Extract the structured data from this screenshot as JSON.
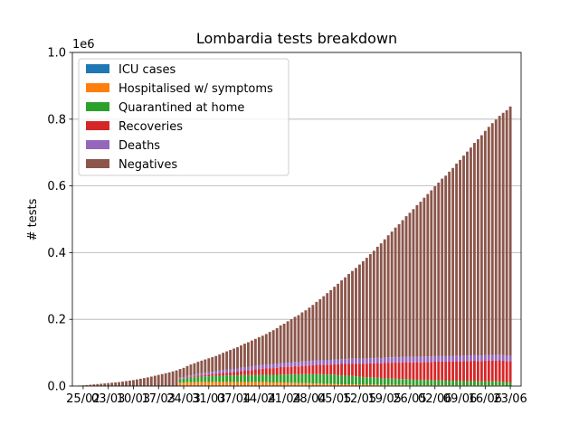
{
  "chart_data": {
    "type": "bar",
    "stacked": true,
    "title": "Lombardia tests breakdown",
    "xlabel": "",
    "ylabel": "# tests",
    "y_offset_label": "1e6",
    "ylim": [
      0,
      1000000
    ],
    "yticks": [
      0,
      200000,
      400000,
      600000,
      800000,
      1000000
    ],
    "ytick_labels": [
      "0.0",
      "0.2",
      "0.4",
      "0.6",
      "0.8",
      "1.0"
    ],
    "grid": "horizontal",
    "legend_position": "upper-left",
    "x_start_date": "2020-02-24",
    "xticks": [
      "25/02",
      "03/03",
      "10/03",
      "17/03",
      "24/03",
      "31/03",
      "07/04",
      "14/04",
      "21/04",
      "28/04",
      "05/05",
      "12/05",
      "19/05",
      "26/05",
      "02/06",
      "09/06",
      "16/06",
      "23/06"
    ],
    "series": [
      {
        "name": "ICU cases",
        "color": "#1f77b4"
      },
      {
        "name": "Hospitalised w/ symptoms",
        "color": "#ff7f0e"
      },
      {
        "name": "Quarantined at home",
        "color": "#2ca02c"
      },
      {
        "name": "Recoveries",
        "color": "#d62728"
      },
      {
        "name": "Deaths",
        "color": "#9467bd"
      },
      {
        "name": "Negatives",
        "color": "#8c564b"
      }
    ],
    "dates": [
      "24/02",
      "25/02",
      "26/02",
      "27/02",
      "28/02",
      "29/02",
      "01/03",
      "02/03",
      "03/03",
      "04/03",
      "05/03",
      "06/03",
      "07/03",
      "08/03",
      "09/03",
      "10/03",
      "11/03",
      "12/03",
      "13/03",
      "14/03",
      "15/03",
      "16/03",
      "17/03",
      "18/03",
      "19/03",
      "20/03",
      "21/03",
      "22/03",
      "23/03",
      "24/03",
      "25/03",
      "26/03",
      "27/03",
      "28/03",
      "29/03",
      "30/03",
      "31/03",
      "01/04",
      "02/04",
      "03/04",
      "04/04",
      "05/04",
      "06/04",
      "07/04",
      "08/04",
      "09/04",
      "10/04",
      "11/04",
      "12/04",
      "13/04",
      "14/04",
      "15/04",
      "16/04",
      "17/04",
      "18/04",
      "19/04",
      "20/04",
      "21/04",
      "22/04",
      "23/04",
      "24/04",
      "25/04",
      "26/04",
      "27/04",
      "28/04",
      "29/04",
      "30/04",
      "01/05",
      "02/05",
      "03/05",
      "04/05",
      "05/05",
      "06/05",
      "07/05",
      "08/05",
      "09/05",
      "10/05",
      "11/05",
      "12/05",
      "13/05",
      "14/05",
      "15/05",
      "16/05",
      "17/05",
      "18/05",
      "19/05",
      "20/05",
      "21/05",
      "22/05",
      "23/05",
      "24/05",
      "25/05",
      "26/05",
      "27/05",
      "28/05",
      "29/05",
      "30/05",
      "31/05",
      "01/06",
      "02/06",
      "03/06",
      "04/06",
      "05/06",
      "06/06",
      "07/06",
      "08/06",
      "09/06",
      "10/06",
      "11/06",
      "12/06",
      "13/06",
      "14/06",
      "15/06",
      "16/06",
      "17/06",
      "18/06",
      "19/06",
      "20/06",
      "21/06",
      "22/06",
      "23/06"
    ],
    "values": {
      "ICU cases": [
        0,
        0,
        0,
        0,
        0,
        0,
        0,
        0,
        0,
        0,
        0,
        0,
        0,
        0,
        0,
        0,
        0,
        0,
        0,
        0,
        0,
        0,
        0,
        0,
        0,
        0,
        0,
        0,
        1200,
        1200,
        1200,
        1200,
        1300,
        1300,
        1300,
        1300,
        1300,
        1300,
        1300,
        1300,
        1300,
        1300,
        1300,
        1200,
        1200,
        1200,
        1100,
        1100,
        1100,
        1000,
        1000,
        1000,
        900,
        900,
        900,
        900,
        900,
        800,
        800,
        800,
        800,
        700,
        700,
        700,
        700,
        600,
        600,
        600,
        500,
        500,
        500,
        500,
        400,
        400,
        400,
        400,
        400,
        300,
        300,
        300,
        300,
        300,
        300,
        300,
        300,
        300,
        200,
        200,
        200,
        200,
        200,
        200,
        200,
        200,
        200,
        200,
        200,
        200,
        200,
        200,
        200,
        200,
        100,
        100,
        100,
        100,
        100,
        100,
        100,
        100,
        100,
        100,
        100,
        100,
        100,
        100,
        100,
        100,
        100,
        100,
        100
      ],
      "Hospitalised w/ symptoms": [
        0,
        0,
        0,
        0,
        0,
        0,
        0,
        0,
        0,
        0,
        0,
        0,
        0,
        0,
        0,
        0,
        0,
        0,
        0,
        0,
        0,
        0,
        0,
        0,
        0,
        0,
        0,
        0,
        9000,
        9000,
        10000,
        10000,
        10000,
        11000,
        11000,
        11000,
        11000,
        11000,
        11000,
        11000,
        11000,
        11000,
        11000,
        11000,
        11000,
        11000,
        11000,
        11000,
        11000,
        11000,
        11000,
        11000,
        11000,
        10000,
        10000,
        10000,
        10000,
        10000,
        9000,
        9000,
        9000,
        8000,
        8000,
        8000,
        8000,
        7000,
        7000,
        7000,
        6000,
        6000,
        6000,
        6000,
        5000,
        5000,
        5000,
        5000,
        5000,
        5000,
        4000,
        4000,
        4000,
        4000,
        4000,
        4000,
        3000,
        3000,
        3000,
        3000,
        3000,
        3000,
        3000,
        3000,
        3000,
        2000,
        2000,
        2000,
        2000,
        2000,
        2000,
        2000,
        2000,
        2000,
        2000,
        2000,
        2000,
        2000,
        2000,
        2000,
        2000,
        2000,
        2000,
        2000,
        2000,
        2000,
        2000,
        2000,
        2000,
        2000,
        2000
      ],
      "Quarantined at home": [
        0,
        0,
        0,
        0,
        0,
        0,
        0,
        0,
        0,
        0,
        0,
        0,
        0,
        0,
        0,
        0,
        0,
        0,
        0,
        0,
        0,
        0,
        0,
        0,
        0,
        0,
        0,
        0,
        11000,
        12000,
        13000,
        14000,
        15000,
        16000,
        16000,
        17000,
        17000,
        18000,
        18000,
        19000,
        19000,
        20000,
        20000,
        20000,
        20000,
        21000,
        21000,
        21000,
        21000,
        22000,
        22000,
        22000,
        22000,
        23000,
        23000,
        23000,
        24000,
        24000,
        25000,
        25000,
        26000,
        26000,
        27000,
        27000,
        27000,
        28000,
        28000,
        28000,
        28000,
        28000,
        28000,
        28000,
        27000,
        27000,
        26000,
        26000,
        25000,
        24000,
        24000,
        23000,
        22000,
        22000,
        21000,
        21000,
        20000,
        20000,
        20000,
        19000,
        19000,
        18000,
        18000,
        18000,
        17000,
        17000,
        17000,
        16000,
        16000,
        16000,
        15000,
        15000,
        15000,
        15000,
        14000,
        14000,
        14000,
        14000,
        13000,
        13000,
        13000,
        13000,
        13000,
        12000,
        12000,
        12000,
        12000,
        12000,
        12000,
        12000,
        11000,
        11000,
        11000
      ],
      "Recoveries": [
        0,
        0,
        0,
        0,
        0,
        0,
        0,
        0,
        0,
        0,
        0,
        0,
        0,
        0,
        0,
        0,
        0,
        0,
        0,
        0,
        0,
        0,
        0,
        0,
        0,
        0,
        0,
        0,
        1000,
        1000,
        2000,
        2000,
        3000,
        3000,
        4000,
        4000,
        5000,
        5000,
        6000,
        7000,
        8000,
        8000,
        9000,
        10000,
        11000,
        12000,
        13000,
        14000,
        15000,
        16000,
        17000,
        18000,
        19000,
        20000,
        20000,
        21000,
        22000,
        22000,
        23000,
        23000,
        24000,
        24000,
        25000,
        25000,
        26000,
        27000,
        28000,
        28000,
        29000,
        30000,
        30000,
        31000,
        33000,
        34000,
        35000,
        36000,
        37000,
        38000,
        39000,
        40000,
        41000,
        42000,
        43000,
        44000,
        45000,
        46000,
        47000,
        48000,
        49000,
        49000,
        50000,
        51000,
        51000,
        52000,
        53000,
        53000,
        54000,
        54000,
        55000,
        56000,
        56000,
        57000,
        57000,
        58000,
        58000,
        59000,
        59000,
        60000,
        60000,
        60000,
        61000,
        61000,
        61000,
        62000,
        62000,
        62000,
        62000,
        63000,
        63000,
        63000,
        64000
      ],
      "Deaths": [
        0,
        0,
        0,
        0,
        0,
        0,
        0,
        0,
        0,
        0,
        0,
        0,
        0,
        0,
        0,
        0,
        0,
        0,
        0,
        0,
        0,
        0,
        0,
        0,
        0,
        0,
        0,
        0,
        3000,
        3500,
        4000,
        4500,
        5000,
        5500,
        6000,
        6500,
        7000,
        7500,
        8000,
        8300,
        8500,
        8800,
        9000,
        9300,
        9500,
        9800,
        10000,
        10200,
        10400,
        10600,
        10800,
        11000,
        11200,
        11400,
        11600,
        11800,
        12000,
        12200,
        12400,
        12600,
        12800,
        13000,
        13200,
        13400,
        13500,
        13600,
        13700,
        13800,
        13900,
        14000,
        14100,
        14200,
        14300,
        14400,
        14500,
        14600,
        14700,
        14800,
        14900,
        15000,
        15100,
        15200,
        15300,
        15400,
        15500,
        15600,
        15700,
        15800,
        15900,
        16000,
        16000,
        16100,
        16100,
        16200,
        16200,
        16300,
        16300,
        16400,
        16400,
        16500,
        16500,
        16500,
        16600,
        16600,
        16600,
        16700,
        16700,
        16700,
        16700,
        16800,
        16800,
        16800,
        16800,
        16800,
        16900,
        16900,
        16900,
        16900,
        16900,
        16900,
        16900
      ],
      "Negatives": [
        1500,
        2000,
        3000,
        4000,
        5000,
        6000,
        7000,
        8000,
        9000,
        10000,
        11000,
        12000,
        13500,
        15000,
        16500,
        18000,
        20000,
        22000,
        24000,
        26000,
        28500,
        31000,
        33500,
        36000,
        38500,
        41000,
        44000,
        47000,
        26000,
        28000,
        30000,
        33000,
        34000,
        36000,
        38000,
        40000,
        42000,
        44000,
        46000,
        48000,
        52000,
        55000,
        58000,
        61000,
        64000,
        67000,
        71000,
        74000,
        78000,
        81000,
        85000,
        88000,
        92000,
        97000,
        102000,
        107000,
        113000,
        118000,
        124000,
        130000,
        135000,
        141000,
        147000,
        153000,
        160000,
        167000,
        175000,
        183000,
        192000,
        200000,
        209000,
        218000,
        227000,
        236000,
        245000,
        254000,
        263000,
        272000,
        282000,
        292000,
        302000,
        312000,
        322000,
        333000,
        344000,
        355000,
        366000,
        377000,
        388000,
        399000,
        410000,
        421000,
        432000,
        443000,
        454000,
        465000,
        476000,
        487000,
        498000,
        509000,
        520000,
        531000,
        541000,
        552000,
        563000,
        575000,
        587000,
        599000,
        611000,
        623000,
        636000,
        648000,
        660000,
        672000,
        684000,
        695000,
        706000,
        716000,
        726000,
        736000,
        746000,
        756000,
        766000
      ]
    }
  }
}
